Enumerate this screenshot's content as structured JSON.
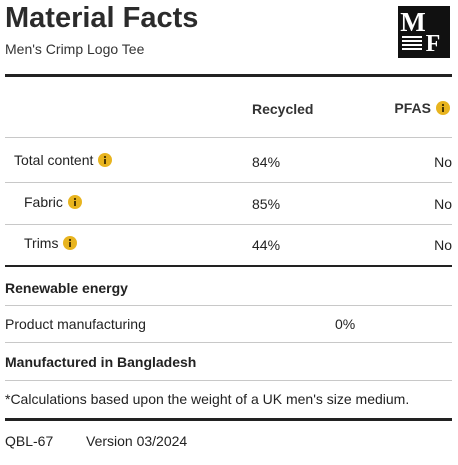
{
  "header": {
    "title": "Material Facts",
    "subtitle": "Men's Crimp Logo Tee",
    "logo": [
      "M",
      "F"
    ]
  },
  "table": {
    "columns": [
      "Recycled",
      "PFAS"
    ],
    "rows": [
      [
        "Total content",
        "84%",
        "No"
      ],
      [
        "Fabric",
        "85%",
        "No"
      ],
      [
        "Trims",
        "44%",
        "No"
      ]
    ]
  },
  "renewable_energy": {
    "heading": "Renewable energy",
    "rows": [
      [
        "Product manufacturing",
        "0%"
      ]
    ]
  },
  "origin": "Manufactured in Bangladesh",
  "footnote": "*Calculations based upon the weight of a UK men's size medium.",
  "footer": [
    "QBL-67",
    "Version 03/2024"
  ]
}
